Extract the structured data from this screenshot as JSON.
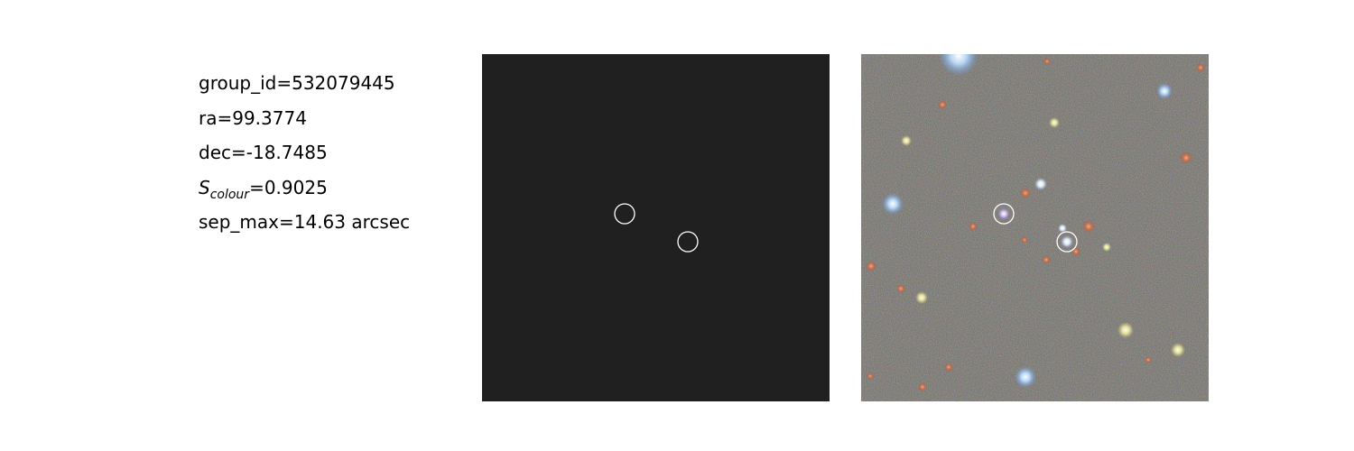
{
  "info": {
    "group_id": "group_id=532079445",
    "ra": "ra=99.3774",
    "dec": "dec=-18.7485",
    "s_colour": {
      "symbol": "S",
      "subscript": "colour",
      "value": "=0.9025"
    },
    "sep_max": "sep_max=14.63 arcsec"
  },
  "panels": {
    "left": {
      "background": "#202020",
      "marker_color": "#ffffff"
    },
    "right": {
      "background": "#6f6c66",
      "marker_color": "#ffffff"
    }
  }
}
